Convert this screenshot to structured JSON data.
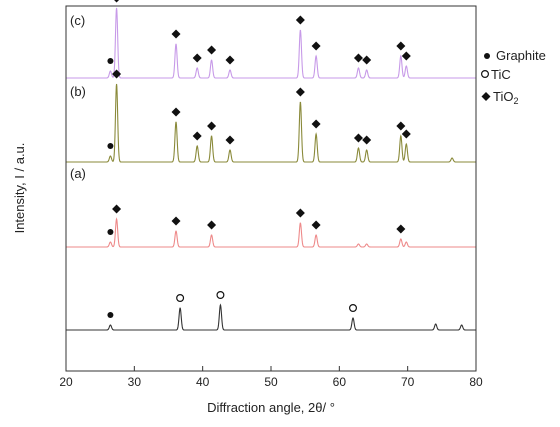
{
  "chart_data": {
    "type": "line",
    "xlabel": "Diffraction angle, 2θ/ °",
    "ylabel": "Intensity, I / a.u.",
    "xlim": [
      20,
      80
    ],
    "xticks": [
      20,
      30,
      40,
      50,
      60,
      70,
      80
    ],
    "grid": false,
    "legend_position": "right",
    "legend": [
      {
        "symbol": "dot",
        "label": "Graphite"
      },
      {
        "symbol": "circle",
        "label": "TiC"
      },
      {
        "symbol": "diamond",
        "label": "TiO",
        "subscript": "2"
      }
    ],
    "colors": {
      "raw": "#333333",
      "a": "#ee8a8a",
      "b": "#8a8a3a",
      "c": "#c79ae8"
    },
    "series": [
      {
        "label": "",
        "color_key": "raw",
        "peaks": [
          [
            26.5,
            0.05
          ],
          [
            36.7,
            0.22
          ],
          [
            42.6,
            0.25
          ],
          [
            62.0,
            0.12
          ],
          [
            74.1,
            0.06
          ],
          [
            77.9,
            0.05
          ]
        ],
        "markers": [
          {
            "x": 26.5,
            "symbol": "dot"
          },
          {
            "x": 36.7,
            "symbol": "circle"
          },
          {
            "x": 42.6,
            "symbol": "circle"
          },
          {
            "x": 62.0,
            "symbol": "circle"
          }
        ]
      },
      {
        "label": "(a)",
        "color_key": "a",
        "peaks": [
          [
            26.5,
            0.05
          ],
          [
            27.4,
            0.28
          ],
          [
            36.1,
            0.16
          ],
          [
            41.3,
            0.12
          ],
          [
            54.3,
            0.24
          ],
          [
            56.6,
            0.12
          ],
          [
            62.8,
            0.03
          ],
          [
            64.0,
            0.03
          ],
          [
            69.0,
            0.08
          ],
          [
            69.8,
            0.05
          ]
        ],
        "markers": [
          {
            "x": 26.5,
            "symbol": "dot"
          },
          {
            "x": 27.4,
            "symbol": "diamond"
          },
          {
            "x": 36.1,
            "symbol": "diamond"
          },
          {
            "x": 41.3,
            "symbol": "diamond"
          },
          {
            "x": 54.3,
            "symbol": "diamond"
          },
          {
            "x": 56.6,
            "symbol": "diamond"
          },
          {
            "x": 69.0,
            "symbol": "diamond"
          }
        ]
      },
      {
        "label": "(b)",
        "color_key": "b",
        "peaks": [
          [
            26.5,
            0.06
          ],
          [
            27.4,
            0.78
          ],
          [
            36.1,
            0.4
          ],
          [
            39.2,
            0.16
          ],
          [
            41.3,
            0.26
          ],
          [
            44.0,
            0.12
          ],
          [
            54.3,
            0.6
          ],
          [
            56.6,
            0.28
          ],
          [
            62.8,
            0.14
          ],
          [
            64.0,
            0.12
          ],
          [
            69.0,
            0.26
          ],
          [
            69.8,
            0.18
          ],
          [
            76.5,
            0.04
          ]
        ],
        "markers": [
          {
            "x": 26.5,
            "symbol": "dot"
          },
          {
            "x": 27.4,
            "symbol": "diamond"
          },
          {
            "x": 36.1,
            "symbol": "diamond"
          },
          {
            "x": 39.2,
            "symbol": "diamond"
          },
          {
            "x": 41.3,
            "symbol": "diamond"
          },
          {
            "x": 44.0,
            "symbol": "diamond"
          },
          {
            "x": 54.3,
            "symbol": "diamond"
          },
          {
            "x": 56.6,
            "symbol": "diamond"
          },
          {
            "x": 62.8,
            "symbol": "diamond"
          },
          {
            "x": 64.0,
            "symbol": "diamond"
          },
          {
            "x": 69.0,
            "symbol": "diamond"
          },
          {
            "x": 69.8,
            "symbol": "diamond"
          }
        ]
      },
      {
        "label": "(c)",
        "color_key": "c",
        "peaks": [
          [
            26.5,
            0.07
          ],
          [
            27.4,
            0.7
          ],
          [
            36.1,
            0.34
          ],
          [
            39.2,
            0.1
          ],
          [
            41.3,
            0.18
          ],
          [
            44.0,
            0.08
          ],
          [
            54.3,
            0.48
          ],
          [
            56.6,
            0.22
          ],
          [
            62.8,
            0.1
          ],
          [
            64.0,
            0.08
          ],
          [
            69.0,
            0.22
          ],
          [
            69.8,
            0.12
          ]
        ],
        "markers": [
          {
            "x": 26.5,
            "symbol": "dot"
          },
          {
            "x": 27.4,
            "symbol": "diamond"
          },
          {
            "x": 36.1,
            "symbol": "diamond"
          },
          {
            "x": 39.2,
            "symbol": "diamond"
          },
          {
            "x": 41.3,
            "symbol": "diamond"
          },
          {
            "x": 44.0,
            "symbol": "diamond"
          },
          {
            "x": 54.3,
            "symbol": "diamond"
          },
          {
            "x": 56.6,
            "symbol": "diamond"
          },
          {
            "x": 62.8,
            "symbol": "diamond"
          },
          {
            "x": 64.0,
            "symbol": "diamond"
          },
          {
            "x": 69.0,
            "symbol": "diamond"
          },
          {
            "x": 69.8,
            "symbol": "diamond"
          }
        ]
      }
    ]
  }
}
